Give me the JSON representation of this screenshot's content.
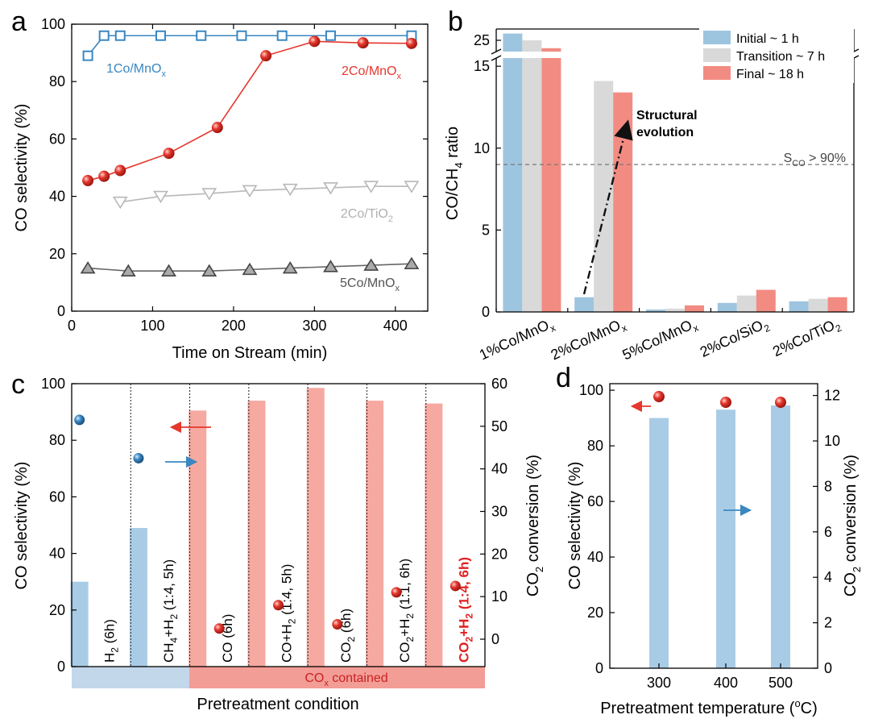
{
  "colors": {
    "blue_bar": "#9ec5df",
    "blue_dark": "#3a87c2",
    "grey_bar": "#d9d9d9",
    "red_bar": "#f28b82",
    "red_dark": "#e5372d",
    "red_bar_c": "#f6a9a1",
    "blue_bar_c": "#a9cce6",
    "grey_line": "#555555",
    "light_grey_line": "#b0b0b0",
    "red_text": "#e02020"
  },
  "panels": {
    "a": {
      "letter": "a",
      "xlabel": "Time on Stream (min)",
      "ylabel": "CO selectivity (%)",
      "xlim": [
        0,
        440
      ],
      "ylim": [
        0,
        100
      ]
    },
    "b": {
      "letter": "b",
      "ylabel_main": "CO/CH",
      "ylabel_sub": "4",
      "ylabel_end": " ratio",
      "threshold_label_main": "S",
      "threshold_label_sub": "CO",
      "threshold_label_end": " > 90%",
      "annotation_line1": "Structural",
      "annotation_line2": "evolution"
    },
    "c": {
      "letter": "c",
      "xlabel": "Pretreatment condition",
      "ylabel_left": "CO selectivity (%)",
      "ylabel_right_main": "CO",
      "ylabel_right_sub": "2",
      "ylabel_right_end": " conversion (%)",
      "band_label_main": "CO",
      "band_label_sub": "x",
      "band_label_end": " contained"
    },
    "d": {
      "letter": "d",
      "xlabel_main": "Pretreatment temperature (",
      "xlabel_sup": "o",
      "xlabel_end": "C)",
      "ylabel_left": "CO selectivity (%)",
      "ylabel_right_main": "CO",
      "ylabel_right_sub": "2",
      "ylabel_right_end": " conversion (%)"
    }
  },
  "chart_data": [
    {
      "panel": "a",
      "type": "line",
      "xlabel": "Time on Stream (min)",
      "ylabel": "CO selectivity (%)",
      "xlim": [
        0,
        440
      ],
      "ylim": [
        0,
        100
      ],
      "xticks": [
        0,
        100,
        200,
        300,
        400
      ],
      "yticks": [
        0,
        20,
        40,
        60,
        80,
        100
      ],
      "series": [
        {
          "name": "1Co/MnOx",
          "label_main": "1Co/MnO",
          "label_sub": "x",
          "marker": "square",
          "color": "#3a87c2",
          "x": [
            20,
            40,
            60,
            110,
            160,
            210,
            260,
            320,
            420
          ],
          "y": [
            89,
            96,
            96,
            96,
            96,
            96,
            96,
            96,
            96
          ]
        },
        {
          "name": "2Co/MnOx",
          "label_main": "2Co/MnO",
          "label_sub": "x",
          "marker": "ball",
          "color": "#e5372d",
          "x": [
            20,
            40,
            60,
            120,
            180,
            240,
            300,
            360,
            420
          ],
          "y": [
            45.5,
            47,
            49,
            55,
            64,
            89,
            94,
            93.5,
            93.3
          ]
        },
        {
          "name": "2Co/TiO2",
          "label_main": "2Co/TiO",
          "label_sub": "2",
          "marker": "triangle-down",
          "color": "#b8b8b8",
          "x": [
            60,
            110,
            170,
            220,
            270,
            320,
            370,
            420
          ],
          "y": [
            38,
            40,
            41,
            42,
            42.5,
            43,
            43.5,
            43.5
          ]
        },
        {
          "name": "5Co/MnOx",
          "label_main": "5Co/MnO",
          "label_sub": "x",
          "marker": "triangle-up",
          "color": "#666666",
          "x": [
            20,
            70,
            120,
            170,
            220,
            270,
            320,
            370,
            420
          ],
          "y": [
            15,
            14,
            14,
            14,
            14.5,
            15,
            15.5,
            16,
            16.5
          ]
        }
      ]
    },
    {
      "panel": "b",
      "type": "bar",
      "ylabel": "CO/CH4 ratio",
      "ylim_lower": [
        0,
        15.5
      ],
      "ylim_upper": [
        24,
        26
      ],
      "yticks": [
        0,
        5,
        10,
        15,
        25
      ],
      "categories": [
        {
          "main": "1%Co/MnO",
          "sub": "x"
        },
        {
          "main": "2%Co/MnO",
          "sub": "x"
        },
        {
          "main": "5%Co/MnO",
          "sub": "x"
        },
        {
          "main": "2%Co/SiO",
          "sub": "2"
        },
        {
          "main": "2%Co/TiO",
          "sub": "2"
        }
      ],
      "series": [
        {
          "name": "Initial ~ 1 h",
          "color": "#9ec5df",
          "values": [
            25.6,
            0.9,
            0.15,
            0.55,
            0.65
          ]
        },
        {
          "name": "Transition ~ 7 h",
          "color": "#d9d9d9",
          "values": [
            25.0,
            14.1,
            0.2,
            1.0,
            0.8
          ]
        },
        {
          "name": "Final ~ 18 h",
          "color": "#f28b82",
          "values": [
            24.3,
            13.4,
            0.4,
            1.35,
            0.9
          ]
        }
      ],
      "threshold": 9
    },
    {
      "panel": "c",
      "type": "bar",
      "ylabel_left": "CO selectivity (%)",
      "ylabel_right": "CO2 conversion (%)",
      "ylim_left": [
        0,
        100
      ],
      "ylim_right": [
        0,
        60
      ],
      "yticks_left": [
        0,
        20,
        40,
        60,
        80,
        100
      ],
      "yticks_right": [
        0,
        10,
        20,
        30,
        40,
        50,
        60
      ],
      "categories": [
        {
          "main": "H",
          "sub": "2",
          "end": " (6h)",
          "highlight": false
        },
        {
          "main": "CH",
          "sub": "4",
          "end": "+H",
          "sub2": "2",
          "end2": " (1:4, 5h)",
          "highlight": false
        },
        {
          "main": "CO (6h)",
          "highlight": false
        },
        {
          "main": "CO+H",
          "sub": "2",
          "end": " (1:4, 5h)",
          "highlight": false
        },
        {
          "main": "CO",
          "sub": "2",
          "end": " (6h)",
          "highlight": false
        },
        {
          "main": "CO",
          "sub": "2",
          "end": "+H",
          "sub2": "2",
          "end2": " (1:1, 6h)",
          "highlight": false
        },
        {
          "main": "CO",
          "sub": "2",
          "end": "+H",
          "sub2": "2",
          "end2": " (1:4, 6h)",
          "highlight": true
        }
      ],
      "co_selectivity": [
        30,
        49,
        90.5,
        94,
        98.5,
        94,
        93
      ],
      "co2_conversion": [
        51.5,
        42.5,
        2.5,
        8,
        3.5,
        11,
        12.5
      ]
    },
    {
      "panel": "d",
      "type": "bar",
      "xlabel": "Pretreatment temperature (oC)",
      "ylim_left": [
        0,
        100
      ],
      "ylim_right": [
        0,
        12.5
      ],
      "yticks_left": [
        0,
        20,
        40,
        60,
        80,
        100
      ],
      "yticks_right": [
        0,
        2,
        4,
        6,
        8,
        10,
        12
      ],
      "categories": [
        "300",
        "400",
        "500"
      ],
      "co_selectivity": [
        90,
        93,
        94.5
      ],
      "co2_conversion": [
        11.95,
        11.7,
        11.7
      ]
    }
  ]
}
